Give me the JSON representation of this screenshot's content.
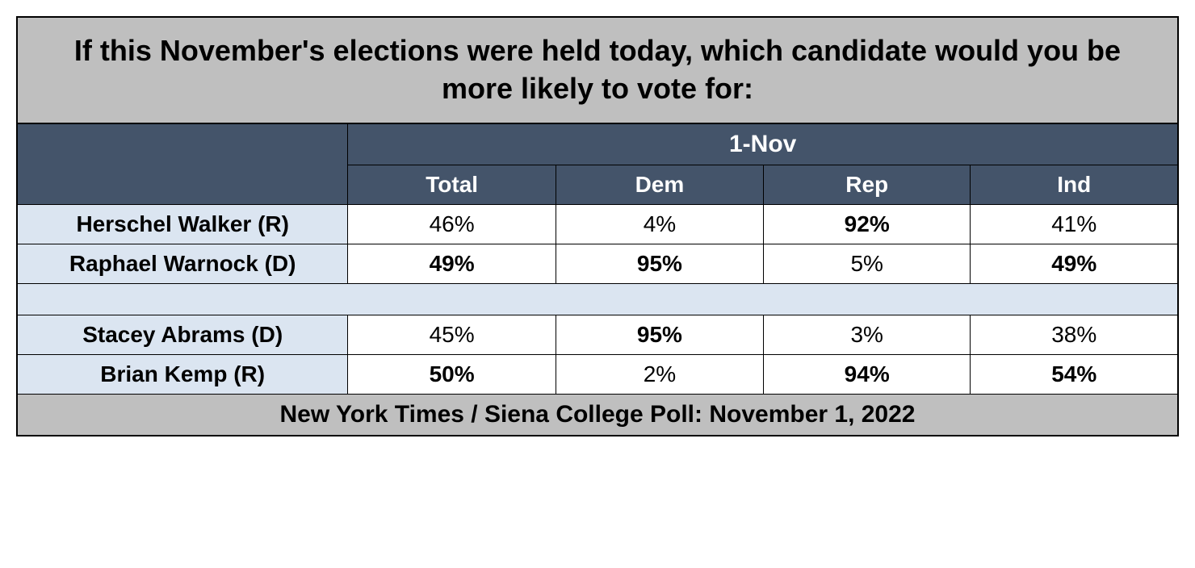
{
  "title": "If this November's elections were held today, which candidate would you be more likely to vote for:",
  "dateHeader": "1-Nov",
  "columns": [
    "Total",
    "Dem",
    "Rep",
    "Ind"
  ],
  "group1": {
    "row1": {
      "label": "Herschel Walker (R)",
      "values": [
        "46%",
        "4%",
        "92%",
        "41%"
      ],
      "bold": [
        false,
        false,
        true,
        false
      ]
    },
    "row2": {
      "label": "Raphael Warnock (D)",
      "values": [
        "49%",
        "95%",
        "5%",
        "49%"
      ],
      "bold": [
        true,
        true,
        false,
        true
      ]
    }
  },
  "group2": {
    "row1": {
      "label": "Stacey Abrams (D)",
      "values": [
        "45%",
        "95%",
        "3%",
        "38%"
      ],
      "bold": [
        false,
        true,
        false,
        false
      ]
    },
    "row2": {
      "label": "Brian Kemp (R)",
      "values": [
        "50%",
        "2%",
        "94%",
        "54%"
      ],
      "bold": [
        true,
        false,
        true,
        true
      ]
    }
  },
  "footer": "New York Times / Siena College Poll: November 1, 2022",
  "colors": {
    "titleBg": "#bfbfbf",
    "headerBg": "#44546a",
    "headerText": "#ffffff",
    "labelBg": "#dbe5f1",
    "dataBg": "#ffffff",
    "border": "#000000"
  }
}
